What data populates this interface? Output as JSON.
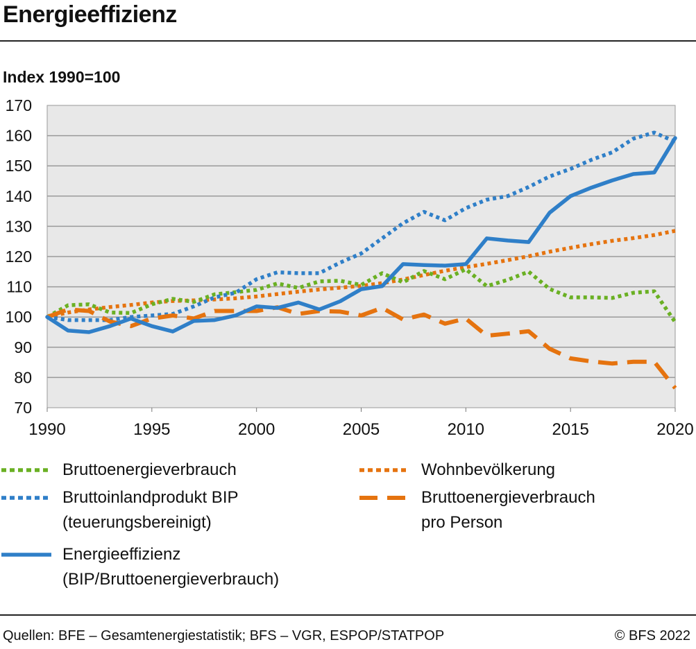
{
  "header": {
    "title": "Energieeffizienz",
    "y_axis_label": "Index 1990=100"
  },
  "footer": {
    "source": "Quellen: BFE – Gesamtenergiestatistik; BFS – VGR, ESPOP/STATPOP",
    "copyright": "© BFS 2022"
  },
  "chart_data": {
    "type": "line",
    "title": "Energieeffizienz",
    "ylabel": "Index 1990=100",
    "xlabel": "",
    "xlim": [
      1990,
      2020
    ],
    "ylim": [
      70,
      170
    ],
    "x_ticks": [
      "1990",
      "1995",
      "2000",
      "2005",
      "2010",
      "2015",
      "2020"
    ],
    "y_ticks": [
      "70",
      "80",
      "90",
      "100",
      "110",
      "120",
      "130",
      "140",
      "150",
      "160",
      "170"
    ],
    "grid": "horizontal",
    "legend_position": "bottom",
    "x": [
      1990,
      1991,
      1992,
      1993,
      1994,
      1995,
      1996,
      1997,
      1998,
      1999,
      2000,
      2001,
      2002,
      2003,
      2004,
      2005,
      2006,
      2007,
      2008,
      2009,
      2010,
      2011,
      2012,
      2013,
      2014,
      2015,
      2016,
      2017,
      2018,
      2019,
      2020
    ],
    "series": [
      {
        "name": "Bruttoenergieverbrauch",
        "color": "#6ab023",
        "style": "dotted",
        "values": [
          100,
          103.9,
          104.2,
          101.5,
          101.3,
          104.2,
          106,
          105,
          107.5,
          108.2,
          109,
          111.1,
          109.6,
          111.8,
          112,
          110.6,
          114.5,
          111.5,
          115.2,
          112.5,
          115.8,
          110.2,
          112.3,
          115,
          109.3,
          106.5,
          106.5,
          106.3,
          108,
          108.5,
          98.3
        ]
      },
      {
        "name": "Bruttoinlandprodukt BIP (teuerungsbereinigt)",
        "color": "#2f7fc8",
        "style": "dotted",
        "values": [
          100,
          99,
          99,
          99,
          100,
          100.5,
          101,
          103.5,
          106.5,
          108,
          112.5,
          114.8,
          114.5,
          114.5,
          118,
          121,
          126,
          131,
          134.8,
          132,
          136,
          138.8,
          140,
          143,
          146.5,
          149,
          152,
          154.5,
          159,
          161,
          158
        ]
      },
      {
        "name": "Energieeffizienz (BIP/Bruttoenergieverbrauch)",
        "color": "#2f7fc8",
        "style": "solid",
        "values": [
          100,
          95.5,
          95,
          97,
          99.5,
          97,
          95.2,
          98.7,
          99,
          100.5,
          103.5,
          103,
          104.8,
          102.5,
          105.2,
          109.2,
          110.2,
          117.5,
          117.2,
          117,
          117.5,
          126,
          125.3,
          124.8,
          134.5,
          140,
          142.8,
          145.2,
          147.3,
          147.8,
          159.2
        ]
      },
      {
        "name": "Wohnbevölkerung",
        "color": "#e5730f",
        "style": "dotted",
        "values": [
          100,
          101.5,
          102.5,
          103.3,
          104,
          104.8,
          105.3,
          105.5,
          105.8,
          106.2,
          106.8,
          107.6,
          108.4,
          109.1,
          109.7,
          110.3,
          111.2,
          112.4,
          113.9,
          115.3,
          116.5,
          117.6,
          118.8,
          120.1,
          121.6,
          122.9,
          124.1,
          125.2,
          126.1,
          127.1,
          128.5
        ]
      },
      {
        "name": "Bruttoenergieverbrauch pro Person",
        "color": "#e5730f",
        "style": "dashed",
        "values": [
          100,
          102.5,
          102,
          98.5,
          97,
          99.5,
          100.5,
          99.5,
          102,
          102,
          102,
          103.2,
          101,
          102,
          101.8,
          100.5,
          103,
          99.2,
          100.8,
          97.8,
          99.5,
          93.8,
          94.5,
          95.3,
          89.5,
          86.3,
          85.3,
          84.6,
          85.2,
          85.2,
          76.5
        ]
      }
    ]
  },
  "legend": [
    {
      "col": 0,
      "lines": [
        "Bruttoenergieverbrauch"
      ],
      "color": "#6ab023",
      "style": "dotted"
    },
    {
      "col": 0,
      "lines": [
        "Bruttoinlandprodukt BIP",
        "(teuerungsbereinigt)"
      ],
      "color": "#2f7fc8",
      "style": "dotted"
    },
    {
      "col": 0,
      "lines": [
        "Energieeffizienz",
        "(BIP/Bruttoenergieverbrauch)"
      ],
      "color": "#2f7fc8",
      "style": "solid"
    },
    {
      "col": 1,
      "lines": [
        "Wohnbevölkerung"
      ],
      "color": "#e5730f",
      "style": "dotted"
    },
    {
      "col": 1,
      "lines": [
        "Bruttoenergieverbrauch",
        "pro Person"
      ],
      "color": "#e5730f",
      "style": "dashed"
    }
  ]
}
